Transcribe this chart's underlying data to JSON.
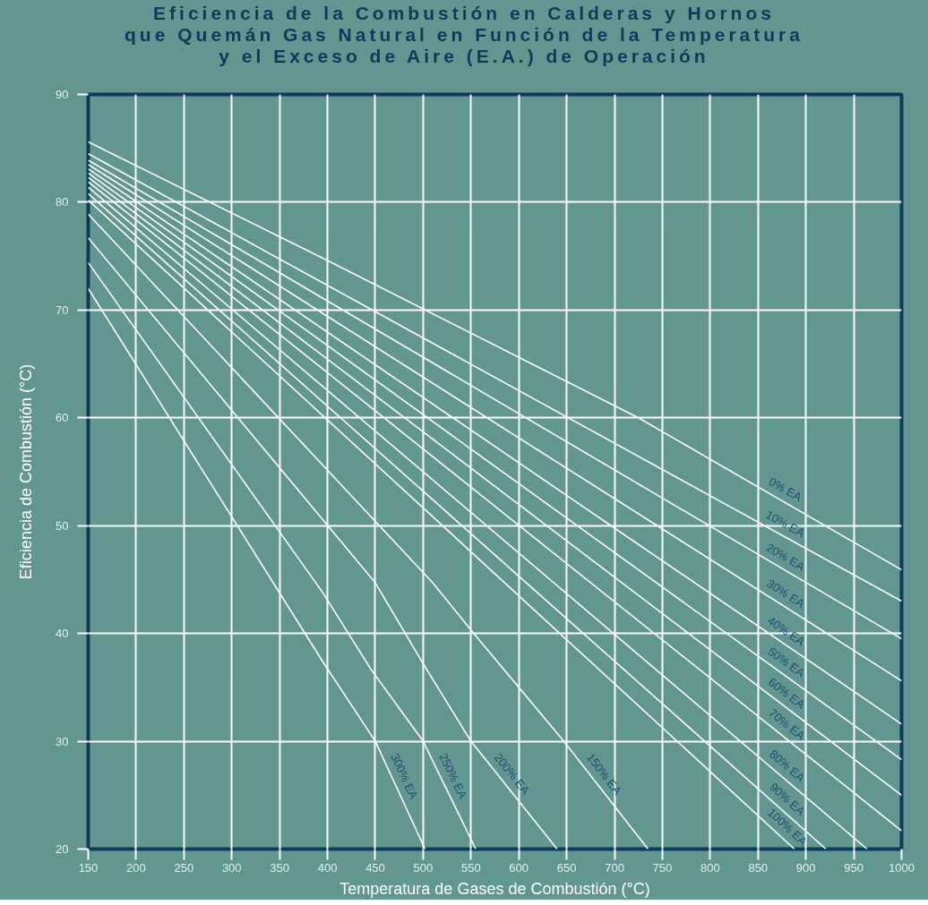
{
  "chart_data": {
    "type": "line",
    "title": "Eficiencia de la Combustión en Calderas y Hornos\nque Quemán Gas Natural en Función de la Temperatura\ny el Exceso de Aire (E.A.) de Operación",
    "xlabel": "Temperatura de Gases de Combustión (°C)",
    "ylabel": "Eficiencia de Combustión (°C)",
    "xlim": [
      150,
      1000
    ],
    "ylim": [
      20,
      90
    ],
    "xticks": [
      150,
      200,
      250,
      300,
      350,
      400,
      450,
      500,
      550,
      600,
      650,
      700,
      750,
      800,
      850,
      900,
      950,
      1000
    ],
    "yticks": [
      20,
      30,
      40,
      50,
      60,
      70,
      80,
      90
    ],
    "grid": true,
    "line_style": "solid",
    "series": [
      {
        "name": "0% EA",
        "color": "#ffffff",
        "x": [
          150,
          400,
          725,
          1000
        ],
        "values": [
          85.6,
          74.6,
          60.0,
          45.9
        ]
      },
      {
        "name": "10% EA",
        "color": "#ffffff",
        "x": [
          150,
          1000
        ],
        "values": [
          84.5,
          43.0
        ]
      },
      {
        "name": "20% EA",
        "color": "#ffffff",
        "x": [
          150,
          1000
        ],
        "values": [
          83.9,
          39.5
        ]
      },
      {
        "name": "30% EA",
        "color": "#ffffff",
        "x": [
          150,
          1000
        ],
        "values": [
          83.5,
          35.6
        ]
      },
      {
        "name": "40% EA",
        "color": "#ffffff",
        "x": [
          150,
          1000
        ],
        "values": [
          83.1,
          31.6
        ]
      },
      {
        "name": "50% EA",
        "color": "#ffffff",
        "x": [
          150,
          1000
        ],
        "values": [
          82.7,
          28.3
        ]
      },
      {
        "name": "60% EA",
        "color": "#ffffff",
        "x": [
          150,
          1000
        ],
        "values": [
          82.3,
          25.0
        ]
      },
      {
        "name": "70% EA",
        "color": "#ffffff",
        "x": [
          150,
          1000
        ],
        "values": [
          81.9,
          21.7
        ]
      },
      {
        "name": "80% EA",
        "color": "#ffffff",
        "x": [
          150,
          964
        ],
        "values": [
          81.4,
          20
        ]
      },
      {
        "name": "90% EA",
        "color": "#ffffff",
        "x": [
          150,
          921
        ],
        "values": [
          80.8,
          20
        ]
      },
      {
        "name": "100% EA",
        "color": "#ffffff",
        "x": [
          150,
          888
        ],
        "values": [
          80.2,
          20
        ]
      },
      {
        "name": "150% EA",
        "color": "#ffffff",
        "x": [
          150,
          510,
          553,
          647,
          735
        ],
        "values": [
          78.9,
          44.7,
          40.0,
          30.0,
          20
        ]
      },
      {
        "name": "200% EA",
        "color": "#ffffff",
        "x": [
          150,
          450,
          500,
          550,
          640
        ],
        "values": [
          76.7,
          44.7,
          37.2,
          30.0,
          20
        ]
      },
      {
        "name": "250% EA",
        "color": "#ffffff",
        "x": [
          150,
          395,
          446,
          500,
          555
        ],
        "values": [
          74.4,
          43.8,
          36.6,
          30.0,
          20
        ]
      },
      {
        "name": "300% EA",
        "color": "#ffffff",
        "x": [
          150,
          395,
          450,
          502
        ],
        "values": [
          72.0,
          37.4,
          30.0,
          20
        ]
      }
    ]
  }
}
